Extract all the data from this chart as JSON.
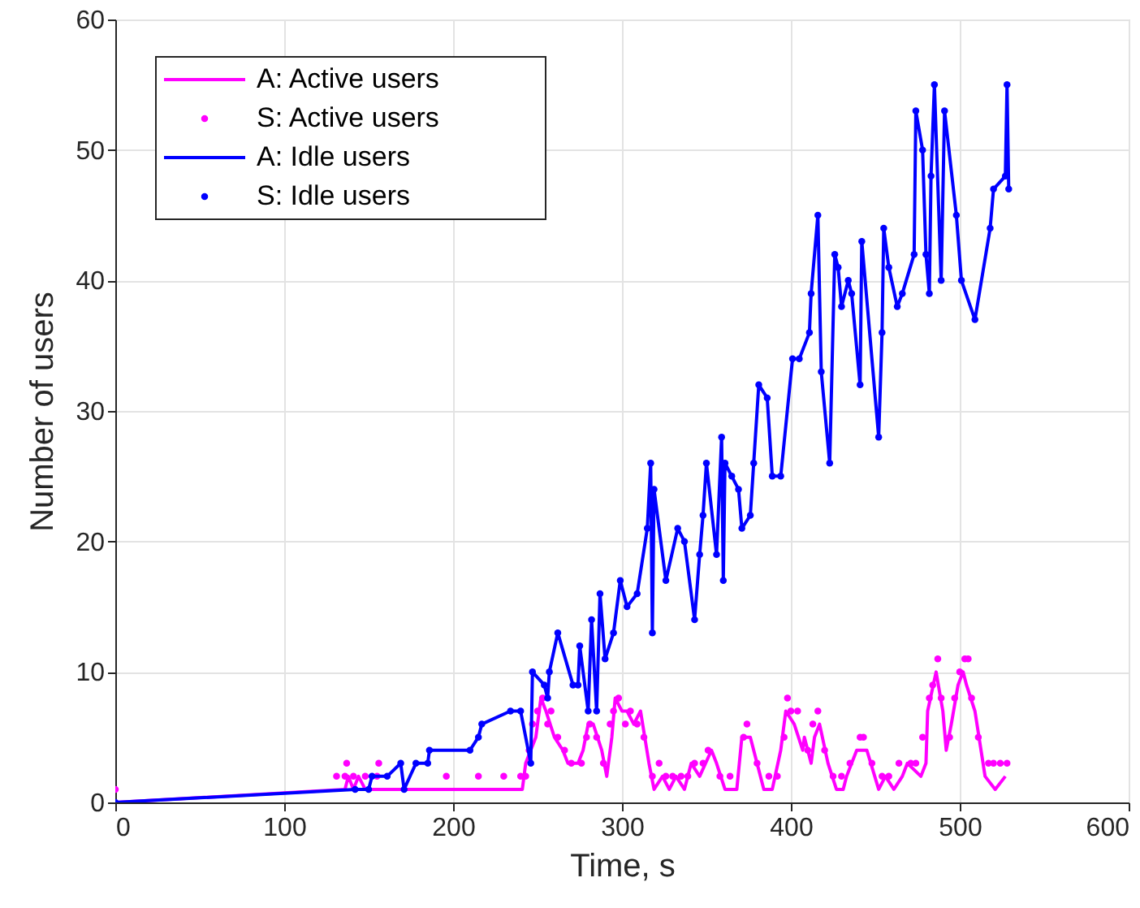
{
  "chart_data": {
    "type": "line",
    "xlabel": "Time, s",
    "ylabel": "Number of users",
    "xlim": [
      0,
      600
    ],
    "ylim": [
      0,
      60
    ],
    "xticks": [
      0,
      100,
      200,
      300,
      400,
      500,
      600
    ],
    "yticks": [
      0,
      10,
      20,
      30,
      40,
      50,
      60
    ],
    "grid": true,
    "legend": "top left",
    "series": [
      {
        "name": "A: Active users",
        "color": "#ff00ff",
        "x": [
          0,
          136,
          138,
          141,
          144,
          148,
          152,
          241,
          243,
          246,
          249,
          252,
          255,
          260,
          265,
          268,
          274,
          277,
          280,
          283,
          288,
          291,
          294,
          296,
          300,
          303,
          307,
          311,
          316,
          319,
          324,
          328,
          332,
          337,
          341,
          346,
          353,
          356,
          361,
          368,
          371,
          376,
          384,
          389,
          394,
          397,
          402,
          407,
          408,
          412,
          414,
          417,
          422,
          427,
          431,
          433,
          439,
          445,
          452,
          456,
          461,
          466,
          469,
          477,
          480,
          481,
          486,
          490,
          492,
          495,
          499,
          502,
          504,
          509,
          515,
          521,
          527
        ],
        "values": [
          0,
          1,
          2,
          1,
          2,
          1,
          1,
          1,
          3,
          4,
          5,
          8,
          7,
          5,
          4,
          3,
          3,
          4,
          6,
          6,
          4,
          2,
          5,
          8,
          7,
          7,
          6,
          7,
          3,
          1,
          2,
          1,
          2,
          1,
          3,
          2,
          4,
          3,
          1,
          1,
          5,
          5,
          1,
          1,
          4,
          7,
          6,
          4,
          5,
          3,
          5,
          6,
          3,
          1,
          1,
          2,
          4,
          4,
          1,
          2,
          1,
          2,
          3,
          2,
          3,
          7,
          10,
          7,
          4,
          6,
          9,
          10,
          9,
          7,
          2,
          1,
          2
        ]
      },
      {
        "name": "S: Active users",
        "type": "scatter",
        "marker": "circle",
        "color": "#ff00ff",
        "x": [
          0,
          131,
          136,
          137,
          141,
          148,
          155,
          156,
          196,
          215,
          230,
          240,
          243,
          245,
          247,
          250,
          253,
          256,
          258,
          262,
          266,
          270,
          276,
          279,
          281,
          285,
          289,
          293,
          295,
          298,
          302,
          305,
          309,
          313,
          318,
          322,
          326,
          330,
          335,
          339,
          343,
          348,
          351,
          358,
          364,
          372,
          374,
          380,
          387,
          392,
          396,
          398,
          400,
          404,
          410,
          413,
          416,
          420,
          425,
          430,
          435,
          441,
          443,
          448,
          454,
          458,
          464,
          471,
          474,
          478,
          482,
          484,
          487,
          489,
          494,
          497,
          500,
          503,
          505,
          507,
          511,
          517,
          520,
          524,
          528
        ],
        "values": [
          1,
          2,
          2,
          3,
          2,
          2,
          2,
          3,
          2,
          2,
          2,
          2,
          2,
          4,
          6,
          7,
          8,
          6,
          7,
          5,
          4,
          3,
          3,
          5,
          6,
          5,
          3,
          6,
          7,
          8,
          6,
          7,
          6,
          5,
          2,
          3,
          2,
          2,
          2,
          2,
          3,
          3,
          4,
          2,
          2,
          5,
          6,
          3,
          2,
          2,
          5,
          8,
          7,
          7,
          4,
          6,
          7,
          4,
          2,
          2,
          3,
          5,
          5,
          3,
          2,
          2,
          3,
          3,
          3,
          5,
          8,
          9,
          11,
          8,
          5,
          8,
          10,
          11,
          11,
          8,
          5,
          3,
          3,
          3,
          3
        ]
      },
      {
        "name": "A: Idle users",
        "color": "#0000ff",
        "x": [
          0,
          142,
          150,
          152,
          161,
          169,
          171,
          178,
          185,
          186,
          210,
          215,
          217,
          234,
          240,
          246,
          247,
          254,
          256,
          257,
          262,
          271,
          274,
          275,
          280,
          282,
          285,
          287,
          290,
          295,
          299,
          303,
          309,
          315,
          317,
          318,
          319,
          326,
          333,
          337,
          343,
          346,
          348,
          350,
          356,
          359,
          360,
          361,
          365,
          369,
          371,
          376,
          378,
          381,
          386,
          389,
          394,
          401,
          405,
          411,
          412,
          416,
          418,
          423,
          426,
          428,
          430,
          434,
          436,
          441,
          442,
          452,
          454,
          455,
          458,
          463,
          466,
          473,
          474,
          478,
          480,
          482,
          483,
          485,
          489,
          491,
          498,
          501,
          509,
          518,
          520,
          527,
          528,
          529
        ],
        "values": [
          0,
          1,
          1,
          2,
          2,
          3,
          1,
          3,
          3,
          4,
          4,
          5,
          6,
          7,
          7,
          3,
          10,
          9,
          8,
          10,
          13,
          9,
          9,
          12,
          7,
          14,
          7,
          16,
          11,
          13,
          17,
          15,
          16,
          21,
          26,
          13,
          24,
          17,
          21,
          20,
          14,
          19,
          22,
          26,
          19,
          28,
          17,
          26,
          25,
          24,
          21,
          22,
          26,
          32,
          31,
          25,
          25,
          34,
          34,
          36,
          39,
          45,
          33,
          26,
          42,
          41,
          38,
          40,
          39,
          32,
          43,
          28,
          36,
          44,
          41,
          38,
          39,
          42,
          53,
          50,
          42,
          39,
          48,
          55,
          40,
          53,
          45,
          40,
          37,
          44,
          47,
          48,
          55,
          47
        ]
      },
      {
        "name": "S: Idle users",
        "type": "scatter",
        "marker": "circle",
        "color": "#0000ff",
        "x": [
          0,
          142,
          150,
          152,
          161,
          169,
          171,
          178,
          185,
          186,
          210,
          215,
          217,
          234,
          240,
          246,
          247,
          254,
          256,
          257,
          262,
          271,
          274,
          275,
          280,
          282,
          285,
          287,
          290,
          295,
          299,
          303,
          309,
          315,
          317,
          318,
          319,
          326,
          333,
          337,
          343,
          346,
          348,
          350,
          356,
          359,
          360,
          361,
          365,
          369,
          371,
          376,
          378,
          381,
          386,
          389,
          394,
          401,
          405,
          411,
          412,
          416,
          418,
          423,
          426,
          428,
          430,
          434,
          436,
          441,
          442,
          452,
          454,
          455,
          458,
          463,
          466,
          473,
          474,
          478,
          480,
          482,
          483,
          485,
          489,
          491,
          498,
          501,
          509,
          518,
          520,
          527,
          528,
          529
        ],
        "values": [
          0,
          1,
          1,
          2,
          2,
          3,
          1,
          3,
          3,
          4,
          4,
          5,
          6,
          7,
          7,
          3,
          10,
          9,
          8,
          10,
          13,
          9,
          9,
          12,
          7,
          14,
          7,
          16,
          11,
          13,
          17,
          15,
          16,
          21,
          26,
          13,
          24,
          17,
          21,
          20,
          14,
          19,
          22,
          26,
          19,
          28,
          17,
          26,
          25,
          24,
          21,
          22,
          26,
          32,
          31,
          25,
          25,
          34,
          34,
          36,
          39,
          45,
          33,
          26,
          42,
          41,
          38,
          40,
          39,
          32,
          43,
          28,
          36,
          44,
          41,
          38,
          39,
          42,
          53,
          50,
          42,
          39,
          48,
          55,
          40,
          53,
          45,
          40,
          37,
          44,
          47,
          48,
          55,
          47
        ]
      }
    ]
  }
}
